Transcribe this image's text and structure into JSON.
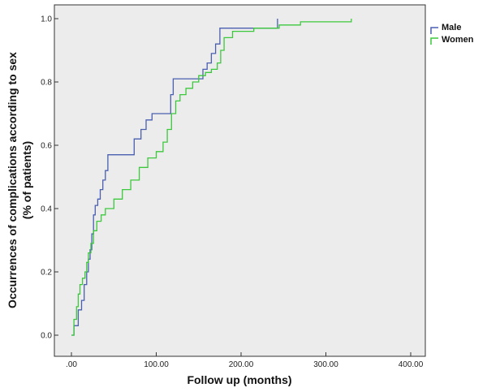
{
  "chart_data": {
    "type": "line",
    "step": true,
    "title": "",
    "xlabel": "Follow up (months)",
    "ylabel_line1": "Occurrences of complications according to sex",
    "ylabel_line2": "(% of patients)",
    "xlim": [
      0,
      400
    ],
    "ylim": [
      0,
      1.0
    ],
    "x_ticks": [
      0,
      100,
      200,
      300,
      400
    ],
    "x_tick_labels": [
      ".00",
      "100.00",
      "200.00",
      "300.00",
      "400.00"
    ],
    "y_ticks": [
      0,
      0.2,
      0.4,
      0.6,
      0.8,
      1.0
    ],
    "y_tick_labels": [
      "0.0",
      "0.2",
      "0.4",
      "0.6",
      "0.8",
      "1.0"
    ],
    "grid": false,
    "legend_position": "top-right",
    "plot_background": "#ececec",
    "series": [
      {
        "name": "Male",
        "color": "#4a5fb0",
        "points": [
          [
            0,
            0
          ],
          [
            3,
            0.03
          ],
          [
            8,
            0.08
          ],
          [
            12,
            0.11
          ],
          [
            15,
            0.16
          ],
          [
            18,
            0.2
          ],
          [
            20,
            0.24
          ],
          [
            22,
            0.27
          ],
          [
            24,
            0.32
          ],
          [
            26,
            0.38
          ],
          [
            28,
            0.41
          ],
          [
            31,
            0.43
          ],
          [
            34,
            0.46
          ],
          [
            37,
            0.49
          ],
          [
            40,
            0.52
          ],
          [
            43,
            0.57
          ],
          [
            70,
            0.57
          ],
          [
            74,
            0.62
          ],
          [
            82,
            0.65
          ],
          [
            88,
            0.68
          ],
          [
            95,
            0.7
          ],
          [
            110,
            0.7
          ],
          [
            117,
            0.76
          ],
          [
            120,
            0.81
          ],
          [
            150,
            0.81
          ],
          [
            155,
            0.84
          ],
          [
            160,
            0.86
          ],
          [
            165,
            0.89
          ],
          [
            170,
            0.92
          ],
          [
            175,
            0.97
          ],
          [
            240,
            0.97
          ],
          [
            243,
            1.0
          ]
        ]
      },
      {
        "name": "Women",
        "color": "#3cc83c",
        "points": [
          [
            0,
            0
          ],
          [
            3,
            0.05
          ],
          [
            6,
            0.09
          ],
          [
            8,
            0.13
          ],
          [
            10,
            0.16
          ],
          [
            13,
            0.18
          ],
          [
            16,
            0.2
          ],
          [
            18,
            0.23
          ],
          [
            20,
            0.26
          ],
          [
            23,
            0.29
          ],
          [
            26,
            0.33
          ],
          [
            30,
            0.36
          ],
          [
            35,
            0.38
          ],
          [
            40,
            0.4
          ],
          [
            50,
            0.43
          ],
          [
            60,
            0.46
          ],
          [
            70,
            0.49
          ],
          [
            80,
            0.53
          ],
          [
            90,
            0.56
          ],
          [
            100,
            0.58
          ],
          [
            108,
            0.61
          ],
          [
            113,
            0.65
          ],
          [
            118,
            0.7
          ],
          [
            123,
            0.74
          ],
          [
            128,
            0.76
          ],
          [
            135,
            0.78
          ],
          [
            143,
            0.8
          ],
          [
            150,
            0.82
          ],
          [
            158,
            0.83
          ],
          [
            165,
            0.84
          ],
          [
            172,
            0.86
          ],
          [
            176,
            0.9
          ],
          [
            180,
            0.94
          ],
          [
            190,
            0.96
          ],
          [
            205,
            0.96
          ],
          [
            215,
            0.97
          ],
          [
            230,
            0.97
          ],
          [
            245,
            0.98
          ],
          [
            270,
            0.99
          ],
          [
            300,
            0.99
          ],
          [
            330,
            1.0
          ]
        ]
      }
    ]
  }
}
